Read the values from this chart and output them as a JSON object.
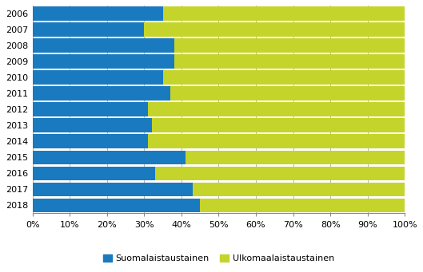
{
  "years": [
    "2006",
    "2007",
    "2008",
    "2009",
    "2010",
    "2011",
    "2012",
    "2013",
    "2014",
    "2015",
    "2016",
    "2017",
    "2018"
  ],
  "suomalais": [
    35,
    30,
    38,
    38,
    35,
    37,
    31,
    32,
    31,
    41,
    33,
    43,
    45
  ],
  "ulkomaalis": [
    65,
    70,
    62,
    62,
    65,
    63,
    69,
    68,
    69,
    59,
    67,
    57,
    55
  ],
  "color_suomalais": "#1a7abf",
  "color_ulkomaalis": "#c5d42b",
  "legend_suomalais": "Suomalaistaustainen",
  "legend_ulkomaalis": "Ulkomaalaistaustainen",
  "xlim": [
    0,
    100
  ],
  "xticks": [
    0,
    10,
    20,
    30,
    40,
    50,
    60,
    70,
    80,
    90,
    100
  ],
  "xtick_labels": [
    "0%",
    "10%",
    "20%",
    "30%",
    "40%",
    "50%",
    "60%",
    "70%",
    "80%",
    "90%",
    "100%"
  ],
  "figsize": [
    5.29,
    3.41
  ],
  "dpi": 100,
  "bar_height": 0.88,
  "grid_color": "#aaaaaa",
  "background_color": "#ffffff",
  "tick_fontsize": 8,
  "legend_fontsize": 8
}
